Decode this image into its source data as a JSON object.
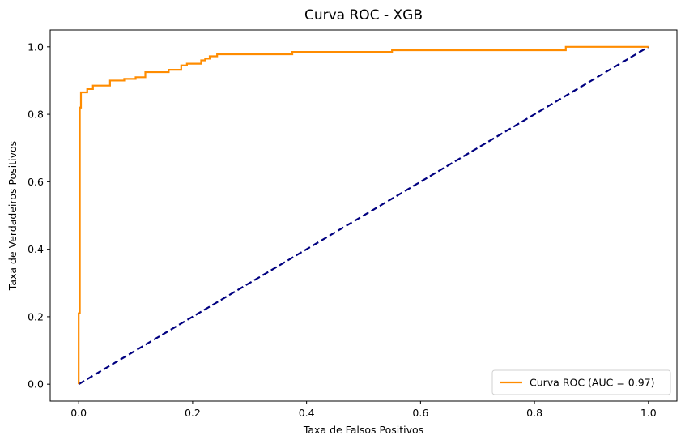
{
  "chart_data": {
    "type": "line",
    "title": "Curva ROC - XGB",
    "xlabel": "Taxa de Falsos Positivos",
    "ylabel": "Taxa de Verdadeiros Positivos",
    "xlim": [
      -0.05,
      1.05
    ],
    "ylim": [
      -0.05,
      1.05
    ],
    "xticks": [
      0.0,
      0.2,
      0.4,
      0.6,
      0.8,
      1.0
    ],
    "yticks": [
      0.0,
      0.2,
      0.4,
      0.6,
      0.8,
      1.0
    ],
    "xtick_labels": [
      "0.0",
      "0.2",
      "0.4",
      "0.6",
      "0.8",
      "1.0"
    ],
    "ytick_labels": [
      "0.0",
      "0.2",
      "0.4",
      "0.6",
      "0.8",
      "1.0"
    ],
    "grid": false,
    "legend_position": "lower-right",
    "series": [
      {
        "name": "Curva ROC (AUC = 0.97)",
        "color": "#ff8c00",
        "style": "solid",
        "points": [
          [
            0.0,
            0.0
          ],
          [
            0.0,
            0.21
          ],
          [
            0.002,
            0.21
          ],
          [
            0.002,
            0.82
          ],
          [
            0.004,
            0.82
          ],
          [
            0.004,
            0.865
          ],
          [
            0.015,
            0.865
          ],
          [
            0.015,
            0.875
          ],
          [
            0.025,
            0.875
          ],
          [
            0.025,
            0.885
          ],
          [
            0.055,
            0.885
          ],
          [
            0.055,
            0.9
          ],
          [
            0.08,
            0.9
          ],
          [
            0.08,
            0.905
          ],
          [
            0.1,
            0.905
          ],
          [
            0.1,
            0.91
          ],
          [
            0.117,
            0.91
          ],
          [
            0.117,
            0.925
          ],
          [
            0.158,
            0.925
          ],
          [
            0.158,
            0.932
          ],
          [
            0.18,
            0.932
          ],
          [
            0.18,
            0.945
          ],
          [
            0.19,
            0.945
          ],
          [
            0.19,
            0.95
          ],
          [
            0.215,
            0.95
          ],
          [
            0.215,
            0.96
          ],
          [
            0.222,
            0.96
          ],
          [
            0.222,
            0.965
          ],
          [
            0.23,
            0.965
          ],
          [
            0.23,
            0.972
          ],
          [
            0.243,
            0.972
          ],
          [
            0.243,
            0.978
          ],
          [
            0.375,
            0.978
          ],
          [
            0.375,
            0.985
          ],
          [
            0.55,
            0.985
          ],
          [
            0.55,
            0.99
          ],
          [
            0.855,
            0.99
          ],
          [
            0.855,
            1.0
          ],
          [
            1.0,
            1.0
          ]
        ]
      },
      {
        "name": "",
        "color": "#000080",
        "style": "dashed",
        "points": [
          [
            0.0,
            0.0
          ],
          [
            1.0,
            1.0
          ]
        ]
      }
    ]
  }
}
